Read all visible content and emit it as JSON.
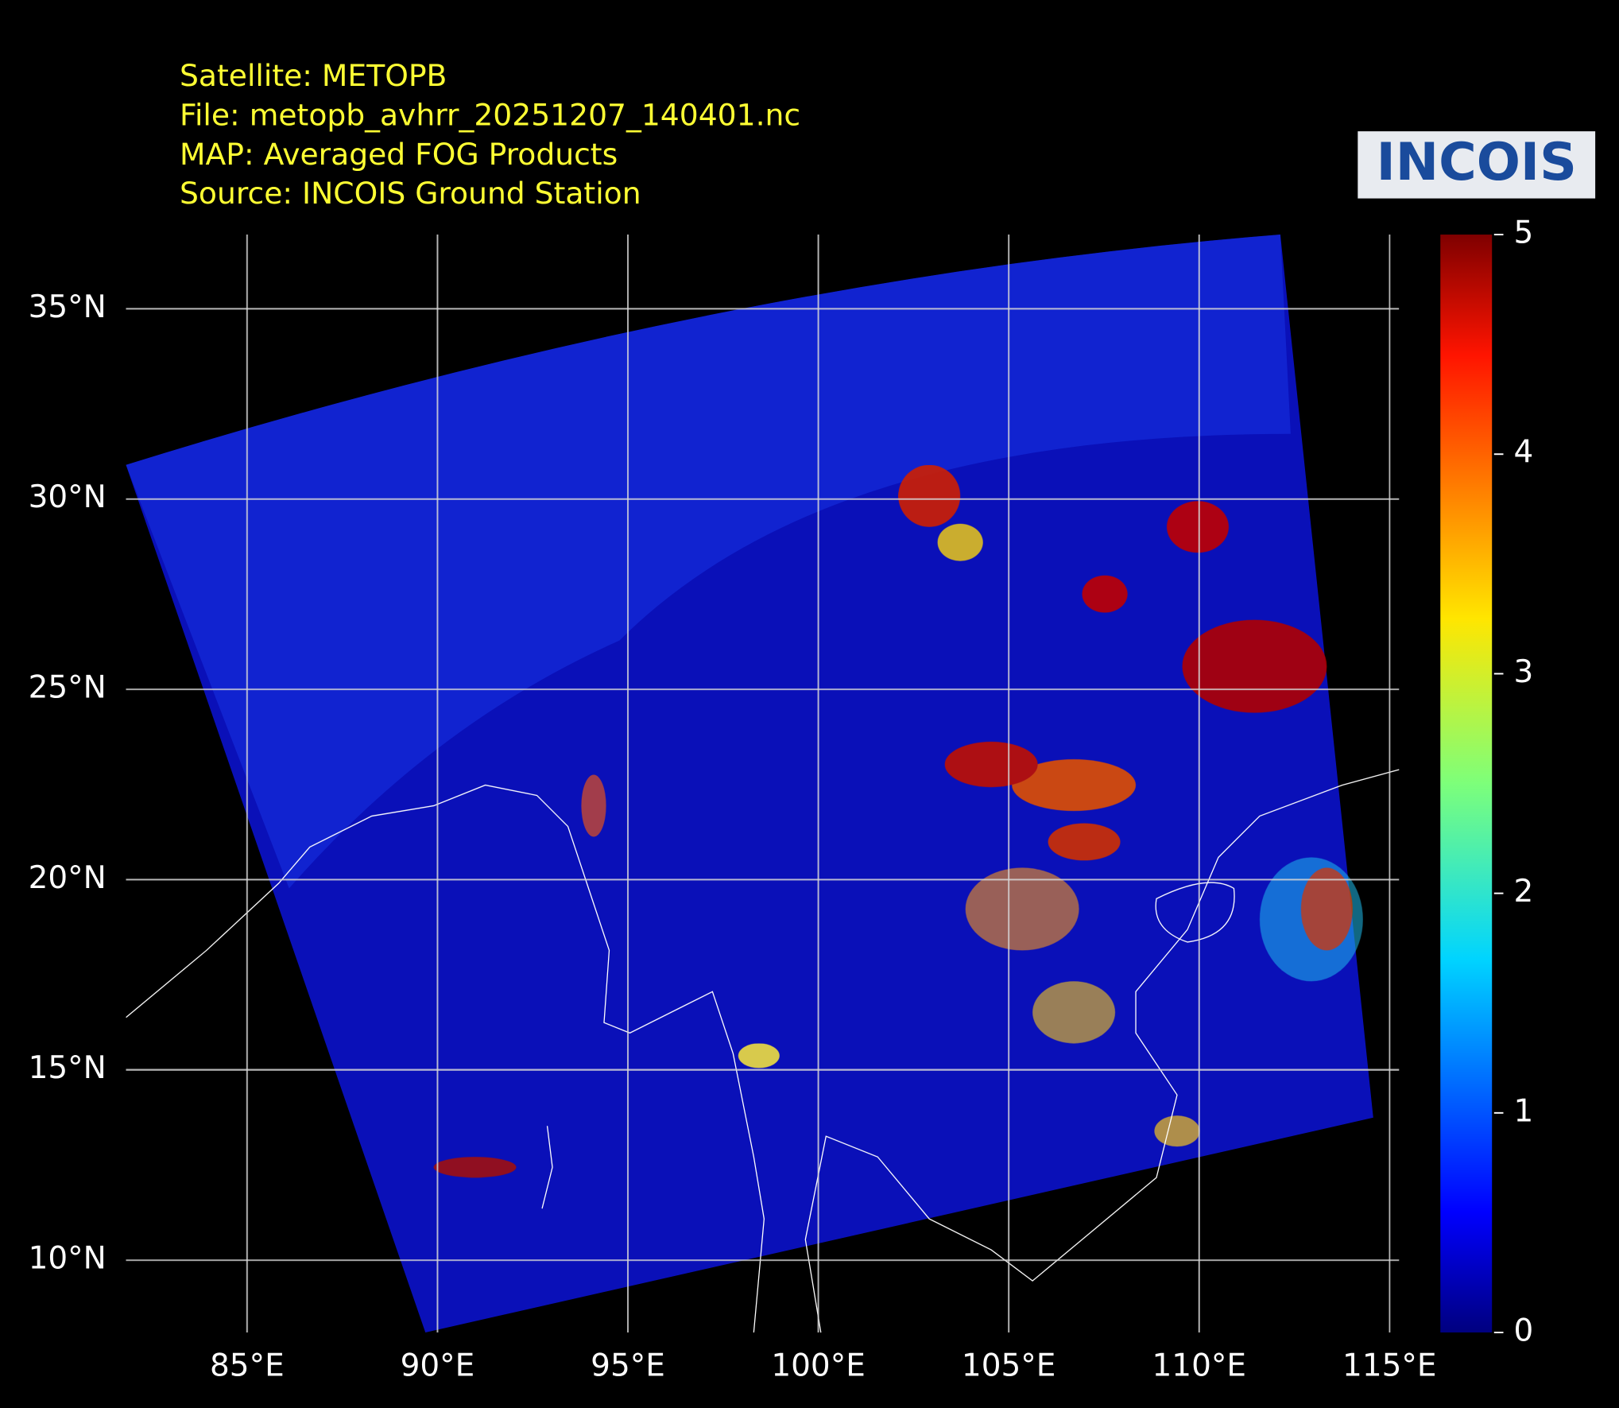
{
  "header": {
    "lines": [
      "Satellite: METOPB",
      "File: metopb_avhrr_20251207_140401.nc",
      "MAP: Averaged FOG Products",
      "Source: INCOIS Ground Station"
    ]
  },
  "logo": {
    "text": "INCOIS"
  },
  "map": {
    "xlim": [
      81.82,
      115.25
    ],
    "ylim": [
      8.1,
      36.95
    ],
    "grid": true,
    "xticks": [
      {
        "value": 85,
        "label": "85°E"
      },
      {
        "value": 90,
        "label": "90°E"
      },
      {
        "value": 95,
        "label": "95°E"
      },
      {
        "value": 100,
        "label": "100°E"
      },
      {
        "value": 105,
        "label": "105°E"
      },
      {
        "value": 110,
        "label": "110°E"
      },
      {
        "value": 115,
        "label": "115°E"
      }
    ],
    "yticks": [
      {
        "value": 10,
        "label": "10°N"
      },
      {
        "value": 15,
        "label": "15°N"
      },
      {
        "value": 20,
        "label": "20°N"
      },
      {
        "value": 25,
        "label": "25°N"
      },
      {
        "value": 30,
        "label": "30°N"
      },
      {
        "value": 35,
        "label": "35°N"
      }
    ]
  },
  "colorbar": {
    "lim": [
      0,
      5
    ],
    "ticks": [
      0,
      1,
      2,
      3,
      4,
      5
    ]
  }
}
